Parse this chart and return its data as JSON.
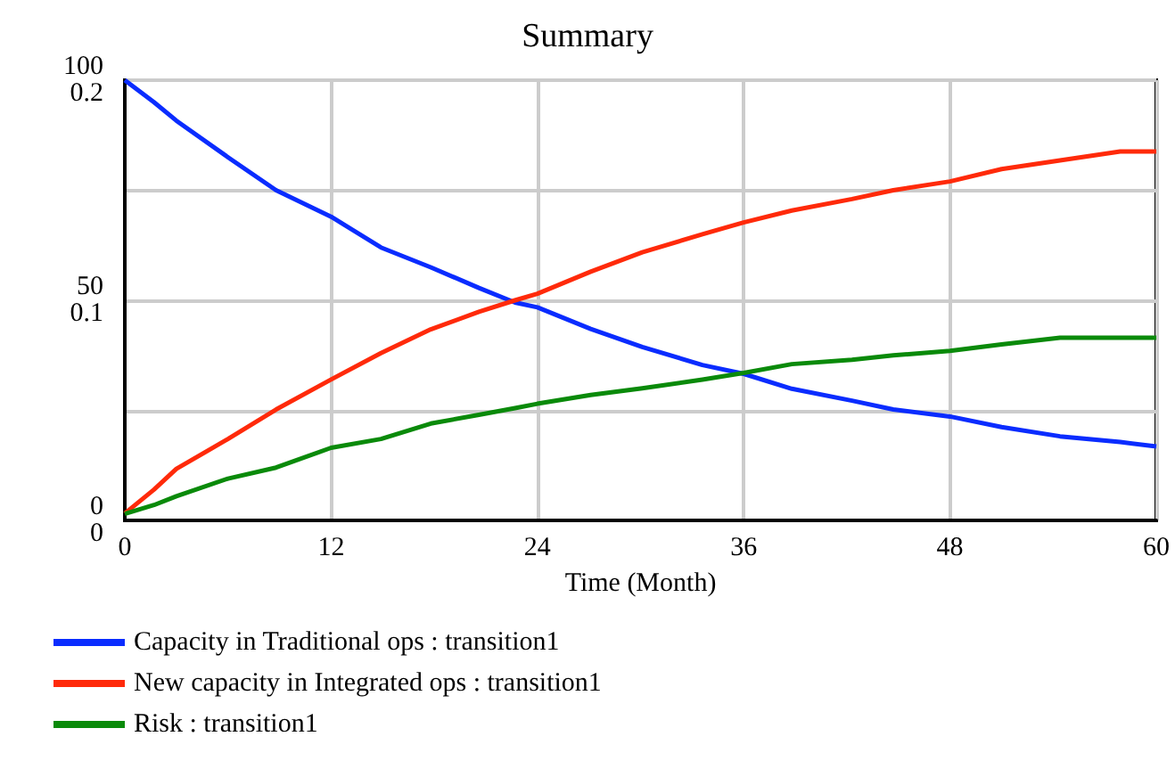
{
  "chart_data": {
    "type": "line",
    "title": "Summary",
    "xlabel": "Time (Month)",
    "x": [
      0,
      1.7,
      3,
      6,
      8.8,
      12,
      14.9,
      17.8,
      20.6,
      22.7,
      24,
      27.1,
      30.1,
      33.6,
      36,
      38.8,
      42.3,
      44.7,
      48,
      51,
      54.4,
      57.9,
      60
    ],
    "series": [
      {
        "name": "Capacity in Traditional ops : transition1",
        "color": "#0a2cff",
        "values": [
          100,
          95,
          90.8,
          82.5,
          75,
          69,
          62,
          57.5,
          52.8,
          49.5,
          48.4,
          43.5,
          39.4,
          35.3,
          33.3,
          29.9,
          27.2,
          25.2,
          23.6,
          21.2,
          19.1,
          17.8,
          16.8
        ]
      },
      {
        "name": "New capacity in Integrated ops : transition1",
        "color": "#ff2a0a",
        "values": [
          1.6,
          7,
          11.7,
          18.5,
          25.2,
          32,
          38,
          43.4,
          47.4,
          50,
          51.5,
          56.5,
          60.9,
          65,
          67.7,
          70.4,
          73,
          75,
          77,
          79.8,
          81.8,
          83.8,
          83.8
        ]
      },
      {
        "name": "Risk : transition1",
        "color": "#0a8a0a",
        "axis": "y2",
        "values": [
          0.003,
          0.007,
          0.011,
          0.019,
          0.024,
          0.033,
          0.037,
          0.044,
          0.048,
          0.051,
          0.053,
          0.057,
          0.06,
          0.064,
          0.067,
          0.071,
          0.073,
          0.075,
          0.077,
          0.08,
          0.083,
          0.083,
          0.083
        ]
      }
    ],
    "xlim": [
      0,
      60
    ],
    "xticks": [
      0,
      12,
      24,
      36,
      48,
      60
    ],
    "ylim": [
      0,
      100
    ],
    "yticks": [
      0,
      {
        "value": 25,
        "label": null
      },
      50,
      {
        "value": 75,
        "label": null
      },
      100
    ],
    "y2lim": [
      0,
      0.2
    ],
    "y2ticks": [
      0,
      0.1,
      0.2
    ],
    "grid": true,
    "legend": "bottom"
  }
}
